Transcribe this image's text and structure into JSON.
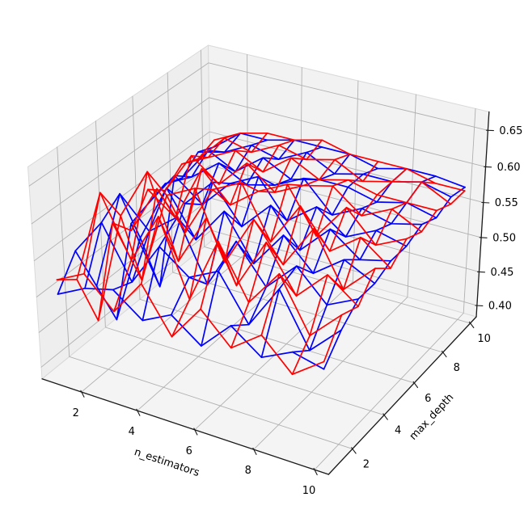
{
  "figure": {
    "background": "#ffffff"
  },
  "chart_data": {
    "type": "wireframe3d",
    "title": "",
    "xlabel": "n_estimators",
    "ylabel": "max_depth",
    "zlabel": "",
    "x": [
      1,
      2,
      3,
      4,
      5,
      6,
      7,
      8,
      9,
      10
    ],
    "y": [
      1,
      2,
      3,
      4,
      5,
      6,
      7,
      8,
      9,
      10
    ],
    "xticks": [
      2,
      4,
      6,
      8,
      10
    ],
    "yticks": [
      2,
      4,
      6,
      8,
      10
    ],
    "zticks": [
      0.4,
      0.45,
      0.5,
      0.55,
      0.6,
      0.65
    ],
    "xtick_labels": [
      "2",
      "4",
      "6",
      "8",
      "10"
    ],
    "ytick_labels": [
      "2",
      "4",
      "6",
      "8",
      "10"
    ],
    "ztick_labels": [
      "0.40",
      "0.45",
      "0.50",
      "0.55",
      "0.60",
      "0.65"
    ],
    "xlim": [
      0.55,
      10.45
    ],
    "ylim": [
      0.55,
      10.45
    ],
    "zlim": [
      0.383,
      0.675
    ],
    "view": {
      "elev": 30,
      "azim": -60,
      "box_aspect": [
        4,
        4,
        3
      ],
      "persp_dist": 25
    },
    "grid": true,
    "legend": null,
    "colors": {
      "pane_left": "#eeeeee",
      "pane_right": "#f2f2f2",
      "pane_floor": "#f4f4f4",
      "pane_edge": "#d9d9d9",
      "grid_line": "#b0b0b0",
      "spine": "#1a1a1a",
      "tick": "#1a1a1a",
      "label": "#000000"
    },
    "series": [
      {
        "name": "blue",
        "color": "#0000ff",
        "z": [
          [
            0.5,
            0.52,
            0.53,
            0.5,
            0.52,
            0.49,
            0.53,
            0.5,
            0.52,
            0.51
          ],
          [
            0.54,
            0.59,
            0.52,
            0.58,
            0.55,
            0.57,
            0.51,
            0.57,
            0.5,
            0.54
          ],
          [
            0.47,
            0.61,
            0.57,
            0.6,
            0.52,
            0.59,
            0.54,
            0.58,
            0.54,
            0.56
          ],
          [
            0.4,
            0.53,
            0.61,
            0.55,
            0.6,
            0.54,
            0.59,
            0.55,
            0.58,
            0.56
          ],
          [
            0.52,
            0.44,
            0.57,
            0.61,
            0.56,
            0.6,
            0.55,
            0.59,
            0.56,
            0.57
          ],
          [
            0.53,
            0.58,
            0.55,
            0.59,
            0.61,
            0.56,
            0.59,
            0.56,
            0.58,
            0.57
          ],
          [
            0.54,
            0.56,
            0.59,
            0.57,
            0.58,
            0.6,
            0.56,
            0.58,
            0.57,
            0.58
          ],
          [
            0.53,
            0.58,
            0.56,
            0.59,
            0.57,
            0.58,
            0.58,
            0.57,
            0.58,
            0.57
          ],
          [
            0.55,
            0.56,
            0.58,
            0.57,
            0.59,
            0.57,
            0.58,
            0.58,
            0.59,
            0.58
          ],
          [
            0.54,
            0.57,
            0.57,
            0.58,
            0.58,
            0.58,
            0.57,
            0.58,
            0.58,
            0.575
          ]
        ]
      },
      {
        "name": "red",
        "color": "#ff0000",
        "z": [
          [
            0.52,
            0.54,
            0.5,
            0.55,
            0.49,
            0.54,
            0.5,
            0.53,
            0.49,
            0.52
          ],
          [
            0.5,
            0.63,
            0.55,
            0.62,
            0.52,
            0.61,
            0.54,
            0.59,
            0.52,
            0.56
          ],
          [
            0.42,
            0.58,
            0.65,
            0.54,
            0.61,
            0.53,
            0.6,
            0.54,
            0.58,
            0.55
          ],
          [
            0.54,
            0.47,
            0.6,
            0.62,
            0.53,
            0.6,
            0.55,
            0.61,
            0.54,
            0.58
          ],
          [
            0.51,
            0.58,
            0.53,
            0.6,
            0.62,
            0.55,
            0.61,
            0.56,
            0.59,
            0.56
          ],
          [
            0.55,
            0.52,
            0.6,
            0.56,
            0.59,
            0.61,
            0.55,
            0.6,
            0.56,
            0.58
          ],
          [
            0.53,
            0.59,
            0.56,
            0.6,
            0.57,
            0.59,
            0.6,
            0.57,
            0.59,
            0.57
          ],
          [
            0.55,
            0.57,
            0.59,
            0.57,
            0.6,
            0.58,
            0.59,
            0.58,
            0.58,
            0.58
          ],
          [
            0.54,
            0.58,
            0.57,
            0.59,
            0.58,
            0.59,
            0.57,
            0.58,
            0.59,
            0.57
          ],
          [
            0.55,
            0.57,
            0.58,
            0.58,
            0.59,
            0.58,
            0.58,
            0.58,
            0.57,
            0.57
          ]
        ]
      }
    ]
  }
}
